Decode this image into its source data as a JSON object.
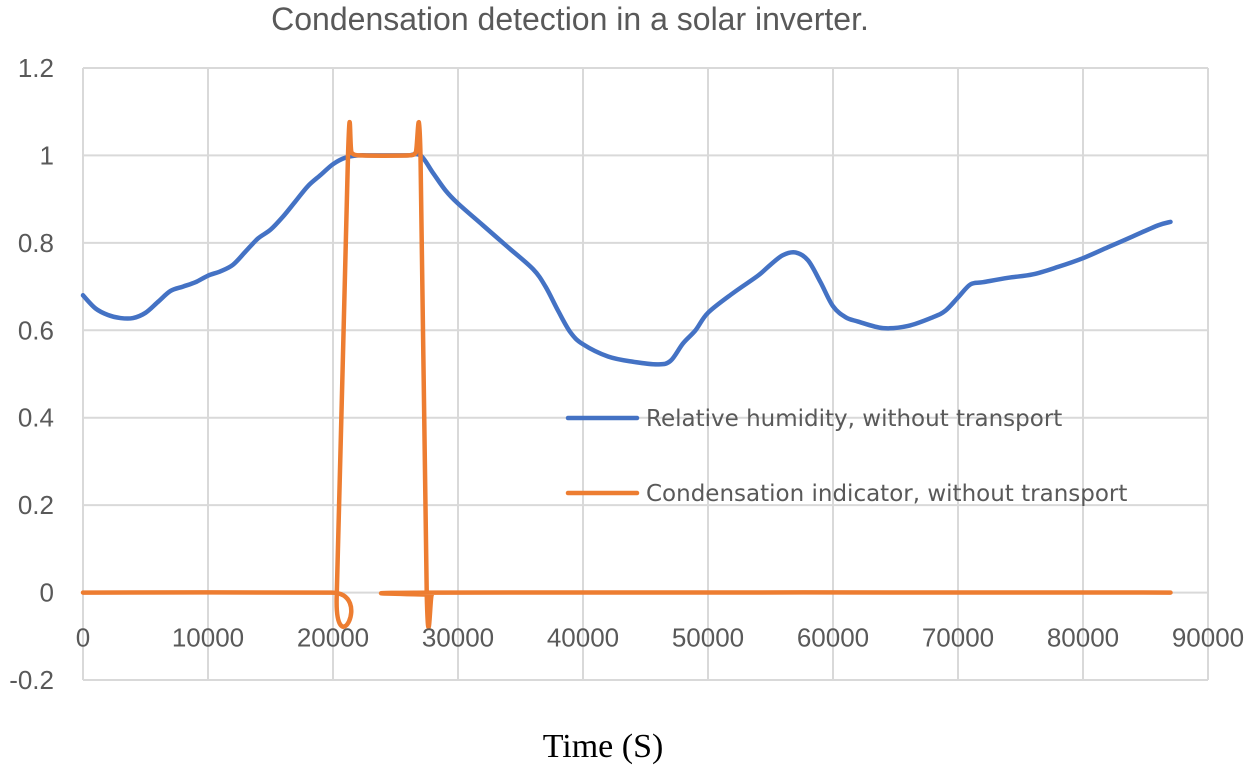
{
  "chart_data": {
    "type": "line",
    "title": "Condensation detection in a solar inverter.",
    "xlabel": "Time (S)",
    "ylabel": "",
    "xlim": [
      0,
      90000
    ],
    "ylim": [
      -0.2,
      1.2
    ],
    "x_ticks": [
      0,
      10000,
      20000,
      30000,
      40000,
      50000,
      60000,
      70000,
      80000,
      90000
    ],
    "x_tick_labels": [
      "0",
      "10000",
      "20000",
      "30000",
      "40000",
      "50000",
      "60000",
      "70000",
      "80000",
      "90000"
    ],
    "y_ticks": [
      -0.2,
      0,
      0.2,
      0.4,
      0.6,
      0.8,
      1,
      1.2
    ],
    "y_tick_labels": [
      "-0.2",
      "0",
      "0.2",
      "0.4",
      "0.6",
      "0.8",
      "1",
      "1.2"
    ],
    "grid": true,
    "legend_position": "center-right",
    "series": [
      {
        "name": "Relative humidity, without transport",
        "color": "#4472c4",
        "x": [
          0,
          1000,
          2000,
          3000,
          4000,
          5000,
          6000,
          7000,
          8000,
          9000,
          10000,
          11000,
          12000,
          13000,
          14000,
          15000,
          16000,
          17000,
          18000,
          19000,
          20000,
          21000,
          22000,
          23000,
          24000,
          25000,
          26000,
          27000,
          28000,
          29000,
          30000,
          32000,
          34000,
          36000,
          37000,
          38000,
          39000,
          40000,
          42000,
          44000,
          46000,
          47000,
          48000,
          49000,
          50000,
          52000,
          54000,
          55000,
          56000,
          57000,
          58000,
          59000,
          60000,
          61000,
          62000,
          64000,
          66000,
          68000,
          69000,
          70000,
          71000,
          72000,
          74000,
          76000,
          78000,
          80000,
          82000,
          84000,
          86000,
          87000
        ],
        "values": [
          0.68,
          0.65,
          0.635,
          0.628,
          0.628,
          0.64,
          0.665,
          0.69,
          0.7,
          0.71,
          0.725,
          0.735,
          0.75,
          0.78,
          0.81,
          0.83,
          0.86,
          0.895,
          0.93,
          0.955,
          0.98,
          0.995,
          1.0,
          1.0,
          1.0,
          1.0,
          1.0,
          1.0,
          0.96,
          0.92,
          0.89,
          0.84,
          0.79,
          0.74,
          0.7,
          0.645,
          0.595,
          0.568,
          0.54,
          0.528,
          0.522,
          0.53,
          0.57,
          0.6,
          0.64,
          0.685,
          0.725,
          0.75,
          0.772,
          0.778,
          0.76,
          0.71,
          0.655,
          0.63,
          0.62,
          0.605,
          0.61,
          0.63,
          0.645,
          0.675,
          0.705,
          0.71,
          0.72,
          0.728,
          0.745,
          0.765,
          0.79,
          0.815,
          0.84,
          0.848
        ]
      },
      {
        "name": "Condensation indicator, without transport",
        "color": "#ed7d31",
        "x": [
          0,
          19900,
          20300,
          21200,
          21500,
          22200,
          26000,
          26600,
          27000,
          27500,
          27900,
          28300,
          87000
        ],
        "values": [
          0,
          0,
          -0.005,
          1.0,
          1.005,
          1.0,
          1.0,
          1.005,
          1.0,
          -0.005,
          -0.005,
          0,
          0
        ]
      }
    ]
  }
}
